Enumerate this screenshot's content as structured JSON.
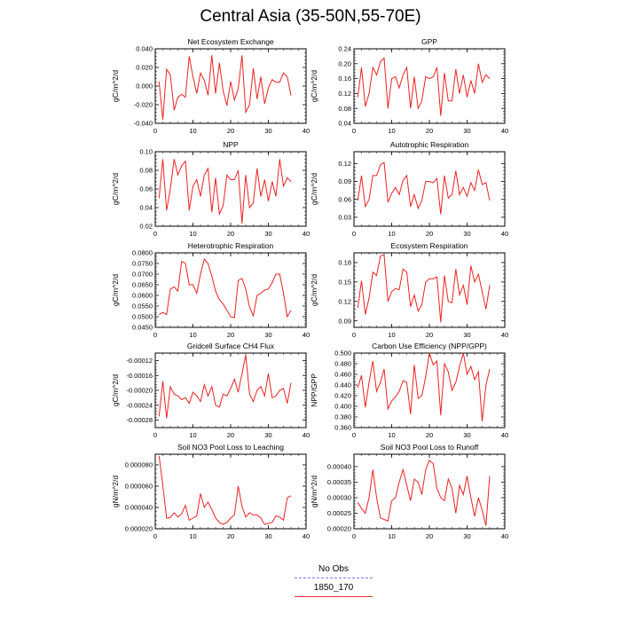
{
  "title": "Central Asia (35-50N,55-70E)",
  "legend": [
    {
      "label": "No Obs",
      "color": "#7777ee",
      "style": "dashed"
    },
    {
      "label": "1850_170",
      "color": "#ee3333",
      "style": "solid"
    }
  ],
  "chart_data": [
    {
      "type": "line",
      "title": "Net Ecosystem Exchange",
      "ylabel": "gC/m^2/d",
      "xlim": [
        0,
        40
      ],
      "ylim": [
        -0.04,
        0.04
      ],
      "xticks": [
        0,
        10,
        20,
        30,
        40
      ],
      "yticks": [
        -0.04,
        -0.02,
        0.0,
        0.02,
        0.04
      ],
      "ytick_labels": [
        "-0.040",
        "-0.020",
        "0.000",
        "0.020",
        "0.040"
      ],
      "series": [
        {
          "name": "1850_170",
          "color": "#ee2222",
          "x": [
            1,
            2,
            3,
            4,
            5,
            6,
            7,
            8,
            9,
            10,
            11,
            12,
            13,
            14,
            15,
            16,
            17,
            18,
            19,
            20,
            21,
            22,
            23,
            24,
            25,
            26,
            27,
            28,
            29,
            30,
            31,
            32,
            33,
            34,
            35,
            36
          ],
          "y": [
            0.005,
            -0.036,
            0.018,
            0.012,
            -0.026,
            -0.012,
            -0.009,
            -0.012,
            0.032,
            0.01,
            -0.008,
            0.014,
            0.006,
            -0.01,
            0.033,
            -0.008,
            0.025,
            -0.005,
            -0.021,
            0.005,
            -0.015,
            -0.003,
            0.033,
            -0.028,
            -0.02,
            0.019,
            -0.014,
            0.01,
            -0.019,
            -0.002,
            0.007,
            0.004,
            0.004,
            0.014,
            0.01,
            -0.01
          ]
        }
      ]
    },
    {
      "type": "line",
      "title": "GPP",
      "ylabel": "gC/m^2/d",
      "xlim": [
        0,
        40
      ],
      "ylim": [
        0.04,
        0.24
      ],
      "xticks": [
        0,
        10,
        20,
        30,
        40
      ],
      "yticks": [
        0.04,
        0.08,
        0.12,
        0.16,
        0.2,
        0.24
      ],
      "ytick_labels": [
        "0.04",
        "0.08",
        "0.12",
        "0.16",
        "0.20",
        "0.24"
      ],
      "series": [
        {
          "name": "1850_170",
          "color": "#ee2222",
          "x": [
            1,
            2,
            3,
            4,
            5,
            6,
            7,
            8,
            9,
            10,
            11,
            12,
            13,
            14,
            15,
            16,
            17,
            18,
            19,
            20,
            21,
            22,
            23,
            24,
            25,
            26,
            27,
            28,
            29,
            30,
            31,
            32,
            33,
            34,
            35,
            36
          ],
          "y": [
            0.11,
            0.19,
            0.085,
            0.12,
            0.19,
            0.17,
            0.205,
            0.215,
            0.08,
            0.16,
            0.165,
            0.135,
            0.17,
            0.19,
            0.08,
            0.165,
            0.08,
            0.1,
            0.165,
            0.16,
            0.165,
            0.19,
            0.06,
            0.175,
            0.1,
            0.1,
            0.185,
            0.12,
            0.17,
            0.11,
            0.155,
            0.12,
            0.2,
            0.15,
            0.17,
            0.16
          ]
        }
      ]
    },
    {
      "type": "line",
      "title": "NPP",
      "ylabel": "gC/m^2/d",
      "xlim": [
        0,
        40
      ],
      "ylim": [
        0.02,
        0.1
      ],
      "xticks": [
        0,
        10,
        20,
        30,
        40
      ],
      "yticks": [
        0.02,
        0.04,
        0.06,
        0.08,
        0.1
      ],
      "ytick_labels": [
        "0.02",
        "0.04",
        "0.06",
        "0.08",
        "0.10"
      ],
      "series": [
        {
          "name": "1850_170",
          "color": "#ee2222",
          "x": [
            1,
            2,
            3,
            4,
            5,
            6,
            7,
            8,
            9,
            10,
            11,
            12,
            13,
            14,
            15,
            16,
            17,
            18,
            19,
            20,
            21,
            22,
            23,
            24,
            25,
            26,
            27,
            28,
            29,
            30,
            31,
            32,
            33,
            34,
            35,
            36
          ],
          "y": [
            0.05,
            0.092,
            0.037,
            0.06,
            0.092,
            0.075,
            0.085,
            0.09,
            0.037,
            0.063,
            0.07,
            0.052,
            0.075,
            0.082,
            0.035,
            0.072,
            0.033,
            0.042,
            0.075,
            0.07,
            0.07,
            0.08,
            0.023,
            0.075,
            0.04,
            0.045,
            0.082,
            0.052,
            0.07,
            0.047,
            0.068,
            0.052,
            0.092,
            0.063,
            0.072,
            0.068
          ]
        }
      ]
    },
    {
      "type": "line",
      "title": "Autotrophic Respiration",
      "ylabel": "gC/m^2/d",
      "xlim": [
        0,
        40
      ],
      "ylim": [
        0.015,
        0.14
      ],
      "xticks": [
        0,
        10,
        20,
        30,
        40
      ],
      "yticks": [
        0.03,
        0.06,
        0.09,
        0.12
      ],
      "ytick_labels": [
        "0.03",
        "0.06",
        "0.09",
        "0.12"
      ],
      "series": [
        {
          "name": "1850_170",
          "color": "#ee2222",
          "x": [
            1,
            2,
            3,
            4,
            5,
            6,
            7,
            8,
            9,
            10,
            11,
            12,
            13,
            14,
            15,
            16,
            17,
            18,
            19,
            20,
            21,
            22,
            23,
            24,
            25,
            26,
            27,
            28,
            29,
            30,
            31,
            32,
            33,
            34,
            35,
            36
          ],
          "y": [
            0.058,
            0.1,
            0.048,
            0.06,
            0.1,
            0.1,
            0.118,
            0.122,
            0.055,
            0.07,
            0.08,
            0.068,
            0.092,
            0.1,
            0.048,
            0.068,
            0.045,
            0.058,
            0.09,
            0.09,
            0.088,
            0.095,
            0.035,
            0.1,
            0.062,
            0.068,
            0.108,
            0.068,
            0.08,
            0.065,
            0.088,
            0.075,
            0.11,
            0.085,
            0.088,
            0.058
          ]
        }
      ]
    },
    {
      "type": "line",
      "title": "Heterotrophic Respiration",
      "ylabel": "gC/m^2/d",
      "xlim": [
        0,
        40
      ],
      "ylim": [
        0.045,
        0.08
      ],
      "xticks": [
        0,
        10,
        20,
        30,
        40
      ],
      "yticks": [
        0.045,
        0.05,
        0.055,
        0.06,
        0.065,
        0.07,
        0.075,
        0.08
      ],
      "ytick_labels": [
        "0.0450",
        "0.0500",
        "0.0550",
        "0.0600",
        "0.0650",
        "0.0700",
        "0.0750",
        "0.0800"
      ],
      "series": [
        {
          "name": "1850_170",
          "color": "#ee2222",
          "x": [
            1,
            2,
            3,
            4,
            5,
            6,
            7,
            8,
            9,
            10,
            11,
            12,
            13,
            14,
            15,
            16,
            17,
            18,
            19,
            20,
            21,
            22,
            23,
            24,
            25,
            26,
            27,
            28,
            29,
            30,
            31,
            32,
            33,
            34,
            35,
            36
          ],
          "y": [
            0.051,
            0.052,
            0.051,
            0.063,
            0.064,
            0.062,
            0.076,
            0.075,
            0.065,
            0.065,
            0.061,
            0.07,
            0.077,
            0.075,
            0.069,
            0.062,
            0.058,
            0.056,
            0.053,
            0.05,
            0.0495,
            0.067,
            0.068,
            0.063,
            0.0545,
            0.0505,
            0.06,
            0.061,
            0.0625,
            0.063,
            0.066,
            0.07,
            0.07,
            0.061,
            0.05,
            0.053
          ]
        }
      ]
    },
    {
      "type": "line",
      "title": "Ecosystem Respiration",
      "ylabel": "gC/m^2/d",
      "xlim": [
        0,
        40
      ],
      "ylim": [
        0.08,
        0.195
      ],
      "xticks": [
        0,
        10,
        20,
        30,
        40
      ],
      "yticks": [
        0.09,
        0.12,
        0.15,
        0.18
      ],
      "ytick_labels": [
        "0.09",
        "0.12",
        "0.15",
        "0.18"
      ],
      "series": [
        {
          "name": "1850_170",
          "color": "#ee2222",
          "x": [
            1,
            2,
            3,
            4,
            5,
            6,
            7,
            8,
            9,
            10,
            11,
            12,
            13,
            14,
            15,
            16,
            17,
            18,
            19,
            20,
            21,
            22,
            23,
            24,
            25,
            26,
            27,
            28,
            29,
            30,
            31,
            32,
            33,
            34,
            35,
            36
          ],
          "y": [
            0.11,
            0.152,
            0.1,
            0.125,
            0.165,
            0.16,
            0.19,
            0.192,
            0.12,
            0.135,
            0.14,
            0.138,
            0.17,
            0.165,
            0.112,
            0.13,
            0.105,
            0.115,
            0.15,
            0.155,
            0.155,
            0.158,
            0.088,
            0.16,
            0.12,
            0.118,
            0.17,
            0.13,
            0.145,
            0.115,
            0.175,
            0.15,
            0.162,
            0.135,
            0.108,
            0.145
          ]
        }
      ]
    },
    {
      "type": "line",
      "title": "Gridcell Surface CH4 Flux",
      "ylabel": "gC/m^2/d",
      "xlim": [
        0,
        40
      ],
      "ylim": [
        -0.0003,
        -0.0001
      ],
      "xticks": [
        0,
        10,
        20,
        30,
        40
      ],
      "yticks": [
        -0.00028,
        -0.00024,
        -0.0002,
        -0.00016,
        -0.00012
      ],
      "ytick_labels": [
        "-0.00028",
        "-0.00024",
        "-0.00020",
        "-0.00016",
        "-0.00012"
      ],
      "series": [
        {
          "name": "1850_170",
          "color": "#ee2222",
          "x": [
            1,
            2,
            3,
            4,
            5,
            6,
            7,
            8,
            9,
            10,
            11,
            12,
            13,
            14,
            15,
            16,
            17,
            18,
            19,
            20,
            21,
            22,
            23,
            24,
            25,
            26,
            27,
            28,
            29,
            30,
            31,
            32,
            33,
            34,
            35,
            36
          ],
          "y": [
            -0.00027,
            -0.000175,
            -0.000275,
            -0.00019,
            -0.00021,
            -0.000215,
            -0.000225,
            -0.00022,
            -0.000235,
            -0.000205,
            -0.000215,
            -0.00023,
            -0.000185,
            -0.000215,
            -0.00019,
            -0.00024,
            -0.000245,
            -0.00021,
            -0.000215,
            -0.000195,
            -0.00017,
            -0.000205,
            -0.000155,
            -0.000105,
            -0.00021,
            -0.00023,
            -0.0002,
            -0.00019,
            -0.000215,
            -0.000155,
            -0.00022,
            -0.000215,
            -0.0002,
            -0.000195,
            -0.000235,
            -0.00018
          ]
        }
      ]
    },
    {
      "type": "line",
      "title": "Carbon Use Efficiency (NPP/GPP)",
      "ylabel": "NPP/GPP",
      "xlim": [
        0,
        40
      ],
      "ylim": [
        0.36,
        0.5
      ],
      "xticks": [
        0,
        10,
        20,
        30,
        40
      ],
      "yticks": [
        0.36,
        0.38,
        0.4,
        0.42,
        0.44,
        0.46,
        0.48,
        0.5
      ],
      "ytick_labels": [
        "0.360",
        "0.380",
        "0.400",
        "0.420",
        "0.440",
        "0.460",
        "0.480",
        "0.500"
      ],
      "series": [
        {
          "name": "1850_170",
          "color": "#ee2222",
          "x": [
            1,
            2,
            3,
            4,
            5,
            6,
            7,
            8,
            9,
            10,
            11,
            12,
            13,
            14,
            15,
            16,
            17,
            18,
            19,
            20,
            21,
            22,
            23,
            24,
            25,
            26,
            27,
            28,
            29,
            30,
            31,
            32,
            33,
            34,
            35,
            36
          ],
          "y": [
            0.435,
            0.458,
            0.398,
            0.445,
            0.485,
            0.428,
            0.445,
            0.47,
            0.395,
            0.41,
            0.418,
            0.428,
            0.448,
            0.445,
            0.385,
            0.478,
            0.415,
            0.42,
            0.455,
            0.5,
            0.478,
            0.485,
            0.383,
            0.48,
            0.465,
            0.43,
            0.445,
            0.475,
            0.5,
            0.46,
            0.475,
            0.45,
            0.465,
            0.372,
            0.44,
            0.47
          ]
        }
      ]
    },
    {
      "type": "line",
      "title": "Soil NO3 Pool Loss to Leaching",
      "ylabel": "gN/m^2/d",
      "xlim": [
        0,
        40
      ],
      "ylim": [
        2e-05,
        9e-05
      ],
      "xticks": [
        0,
        10,
        20,
        30,
        40
      ],
      "yticks": [
        2e-05,
        4e-05,
        6e-05,
        8e-05
      ],
      "ytick_labels": [
        "0.000020",
        "0.000040",
        "0.000060",
        "0.000080"
      ],
      "series": [
        {
          "name": "1850_170",
          "color": "#ee2222",
          "x": [
            1,
            2,
            3,
            4,
            5,
            6,
            7,
            8,
            9,
            10,
            11,
            12,
            13,
            14,
            15,
            16,
            17,
            18,
            19,
            20,
            21,
            22,
            23,
            24,
            25,
            26,
            27,
            28,
            29,
            30,
            31,
            32,
            33,
            34,
            35,
            36
          ],
          "y": [
            8.85e-05,
            6.1e-05,
            3e-05,
            3.05e-05,
            3.5e-05,
            3.1e-05,
            3.4e-05,
            4.2e-05,
            2.8e-05,
            3e-05,
            3.2e-05,
            5.3e-05,
            4e-05,
            4.5e-05,
            3.8e-05,
            3e-05,
            2.6e-05,
            2.4e-05,
            2.6e-05,
            3e-05,
            3.3e-05,
            6e-05,
            4.1e-05,
            3.1e-05,
            3.5e-05,
            3.3e-05,
            3.3e-05,
            3e-05,
            2.4e-05,
            2.5e-05,
            2.6e-05,
            3.2e-05,
            3.1e-05,
            2.8e-05,
            4.9e-05,
            5.1e-05
          ]
        }
      ]
    },
    {
      "type": "line",
      "title": "Soil NO3 Pool Loss to Runoff",
      "ylabel": "gN/m^2/d",
      "xlim": [
        0,
        40
      ],
      "ylim": [
        0.0002,
        0.00044
      ],
      "xticks": [
        0,
        10,
        20,
        30,
        40
      ],
      "yticks": [
        0.0002,
        0.00025,
        0.0003,
        0.00035,
        0.0004
      ],
      "ytick_labels": [
        "0.00020",
        "0.00025",
        "0.00030",
        "0.00035",
        "0.00040"
      ],
      "series": [
        {
          "name": "1850_170",
          "color": "#ee2222",
          "x": [
            1,
            2,
            3,
            4,
            5,
            6,
            7,
            8,
            9,
            10,
            11,
            12,
            13,
            14,
            15,
            16,
            17,
            18,
            19,
            20,
            21,
            22,
            23,
            24,
            25,
            26,
            27,
            28,
            29,
            30,
            31,
            32,
            33,
            34,
            35,
            36
          ],
          "y": [
            0.000285,
            0.000265,
            0.00025,
            0.0003,
            0.00039,
            0.0003,
            0.000235,
            0.00023,
            0.000225,
            0.00029,
            0.0003,
            0.00035,
            0.00039,
            0.00034,
            0.00029,
            0.00036,
            0.00035,
            0.00031,
            0.00039,
            0.00042,
            0.00041,
            0.00033,
            0.0003,
            0.00029,
            0.00036,
            0.00033,
            0.00025,
            0.00034,
            0.00031,
            0.00037,
            0.0003,
            0.00024,
            0.0003,
            0.00026,
            0.00021,
            0.00037
          ]
        }
      ]
    }
  ]
}
